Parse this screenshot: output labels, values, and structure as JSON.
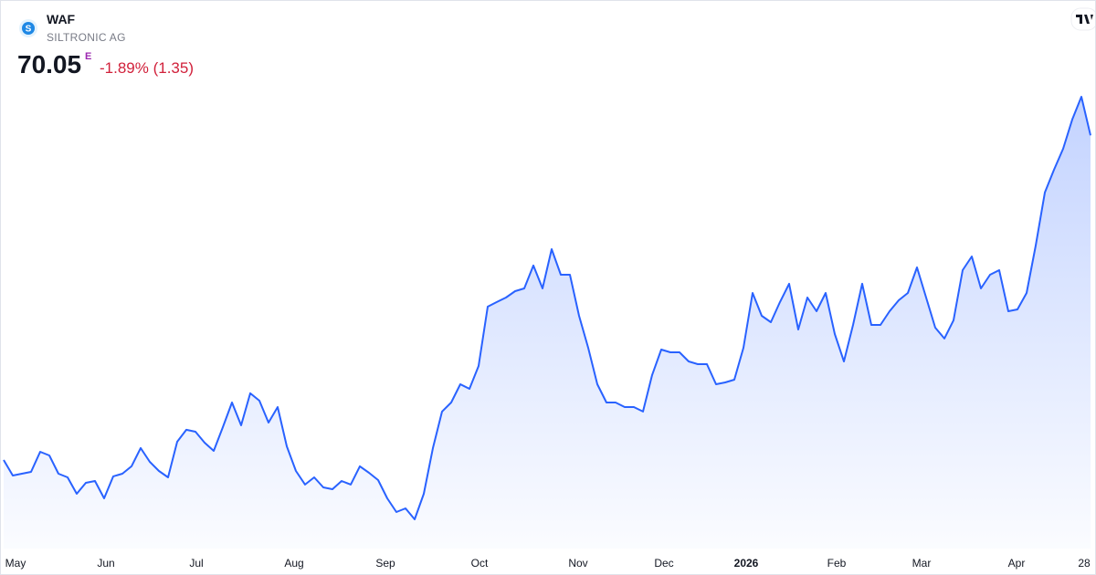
{
  "header": {
    "symbol": "WAF",
    "company": "SILTRONIC AG",
    "price": "70.05",
    "flag": "E",
    "change": "-1.89% (1.35)"
  },
  "chart_data": {
    "type": "area",
    "series": [
      {
        "name": "WAF",
        "color": "#2962ff",
        "values": [
          40.0,
          38.56,
          38.73,
          38.9,
          40.76,
          40.42,
          38.73,
          38.39,
          36.87,
          37.88,
          38.05,
          36.45,
          38.48,
          38.73,
          39.41,
          41.1,
          39.83,
          38.98,
          38.39,
          41.69,
          42.79,
          42.62,
          41.6,
          40.84,
          43.04,
          45.32,
          43.21,
          46.17,
          45.49,
          43.46,
          44.9,
          41.26,
          38.98,
          37.72,
          38.39,
          37.46,
          37.29,
          38.05,
          37.72,
          39.41,
          38.81,
          38.14,
          36.45,
          35.18,
          35.52,
          34.5,
          36.87,
          41.1,
          44.48,
          45.32,
          47.01,
          46.59,
          48.7,
          54.19,
          54.62,
          55.04,
          55.63,
          55.88,
          58.0,
          55.88,
          59.52,
          57.15,
          57.15,
          53.35,
          50.39,
          47.01,
          45.32,
          45.32,
          44.9,
          44.9,
          44.48,
          47.86,
          50.22,
          49.97,
          49.97,
          49.12,
          48.87,
          48.87,
          47.01,
          47.18,
          47.43,
          50.39,
          55.46,
          53.35,
          52.76,
          54.62,
          56.31,
          52.08,
          55.04,
          53.77,
          55.46,
          51.66,
          49.12,
          52.5,
          56.31,
          52.5,
          52.5,
          53.77,
          54.78,
          55.46,
          57.83,
          55.04,
          52.25,
          51.24,
          52.93,
          57.57,
          58.84,
          55.88,
          57.15,
          57.57,
          53.77,
          53.94,
          55.46,
          59.85,
          64.76,
          66.87,
          68.81,
          71.52,
          73.63,
          70.05
        ]
      }
    ],
    "xlim": [
      0,
      119
    ],
    "ylim": [
      31.8,
      82.5
    ],
    "xticks": [
      {
        "value": 1.3,
        "label": "May"
      },
      {
        "value": 11.2,
        "label": "Jun"
      },
      {
        "value": 21.1,
        "label": "Jul"
      },
      {
        "value": 31.8,
        "label": "Aug"
      },
      {
        "value": 41.8,
        "label": "Sep"
      },
      {
        "value": 52.1,
        "label": "Oct"
      },
      {
        "value": 62.9,
        "label": "Nov"
      },
      {
        "value": 72.3,
        "label": "Dec"
      },
      {
        "value": 81.3,
        "label": "2026"
      },
      {
        "value": 91.2,
        "label": "Feb"
      },
      {
        "value": 100.5,
        "label": "Mar"
      },
      {
        "value": 110.9,
        "label": "Apr"
      },
      {
        "value": 118.8,
        "label": "28"
      }
    ]
  }
}
